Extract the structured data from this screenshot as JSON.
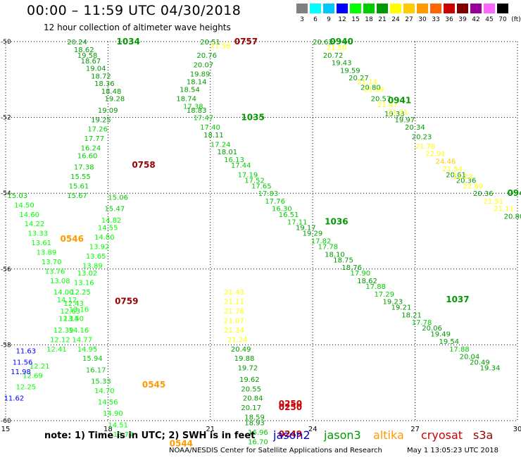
{
  "title": "00:00 – 11:59 UTC 04/30/2018",
  "subtitle": "12 hour collection of altimeter wave heights",
  "note": "note: 1) Time is in UTC; 2) SWH is in feet",
  "footer": "NOAA/NESDIS Center for Satellite Applications and Research",
  "timestamp": "May  1 13:05:23 UTC 2018",
  "missions": [
    {
      "name": "jason2",
      "color": "#0000cc"
    },
    {
      "name": "jason3",
      "color": "#009900"
    },
    {
      "name": "altika",
      "color": "#ff9900"
    },
    {
      "name": "cryosat",
      "color": "#cc0000"
    },
    {
      "name": "s3a",
      "color": "#990000"
    }
  ],
  "color_scale": {
    "unit": "(ft)",
    "thresholds": [
      "3",
      "6",
      "9",
      "12",
      "15",
      "18",
      "21",
      "24",
      "27",
      "30",
      "33",
      "36",
      "39",
      "42",
      "45",
      "70"
    ],
    "colors": [
      "#808080",
      "#00ffff",
      "#00c8ff",
      "#0000ff",
      "#00ff00",
      "#00cc00",
      "#009900",
      "#ffff00",
      "#ffcc00",
      "#ff9900",
      "#ff6600",
      "#cc0000",
      "#800000",
      "#990099",
      "#ff66ff",
      "#000000"
    ]
  },
  "chart_data": {
    "type": "scatter",
    "title": "12 hour collection of altimeter wave heights",
    "xlabel": "",
    "ylabel": "",
    "xlim": [
      15,
      30
    ],
    "ylim": [
      -60,
      -50
    ],
    "x_ticks": [
      "15",
      "18",
      "21",
      "24",
      "27",
      "30"
    ],
    "y_ticks": [
      "-50",
      "-52",
      "-54",
      "-56",
      "-58",
      "-60"
    ],
    "grid": true,
    "tracks": [
      {
        "satellite": "jason3",
        "points": [
          [
            16.8,
            -50.0,
            "20.24"
          ],
          [
            17.0,
            -50.2,
            "18.62"
          ],
          [
            17.1,
            -50.35,
            "19.58"
          ],
          [
            17.2,
            -50.5,
            "18.67"
          ],
          [
            17.35,
            -50.7,
            "19.04"
          ],
          [
            17.5,
            -50.9,
            "18.72"
          ],
          [
            17.6,
            -51.1,
            "18.36"
          ],
          [
            17.8,
            -51.3,
            "18.48"
          ],
          [
            17.9,
            -51.5,
            "19.28"
          ],
          [
            17.7,
            -51.8,
            "19.09"
          ],
          [
            17.5,
            -52.05,
            "19.25"
          ],
          [
            17.4,
            -52.3,
            "17.26"
          ],
          [
            17.3,
            -52.55,
            "17.77"
          ],
          [
            17.2,
            -52.8,
            "16.24"
          ],
          [
            17.1,
            -53.0,
            "16.60"
          ],
          [
            17.0,
            -53.3,
            "17.38"
          ],
          [
            16.9,
            -53.55,
            "15.55"
          ],
          [
            16.85,
            -53.8,
            "15.61"
          ],
          [
            16.8,
            -54.05,
            "15.67"
          ]
        ]
      },
      {
        "satellite": "jason3",
        "points": [
          [
            20.7,
            -50.0,
            "20.51"
          ],
          [
            20.6,
            -50.35,
            "20.76"
          ],
          [
            20.5,
            -50.6,
            "20.07"
          ],
          [
            20.4,
            -50.85,
            "19.89"
          ],
          [
            20.3,
            -51.05,
            "18.14"
          ],
          [
            20.1,
            -51.25,
            "18.54"
          ],
          [
            20.0,
            -51.5,
            "18.74"
          ],
          [
            20.2,
            -51.7,
            "17.38"
          ],
          [
            20.3,
            -51.8,
            "18.83"
          ],
          [
            20.5,
            -52.0,
            "17.47"
          ],
          [
            20.7,
            -52.25,
            "17.40"
          ],
          [
            20.8,
            -52.45,
            "18.11"
          ],
          [
            21.0,
            -52.7,
            "17.24"
          ],
          [
            21.2,
            -52.9,
            "18.01"
          ],
          [
            21.4,
            -53.1,
            "16.13"
          ],
          [
            21.6,
            -53.25,
            "17.44"
          ],
          [
            21.8,
            -53.5,
            "17.19"
          ],
          [
            22.0,
            -53.65,
            "17.52"
          ],
          [
            22.2,
            -53.8,
            "17.65"
          ],
          [
            22.4,
            -54.0,
            "17.83"
          ],
          [
            22.6,
            -54.2,
            "17.76"
          ],
          [
            22.8,
            -54.4,
            "16.30"
          ],
          [
            23.0,
            -54.55,
            "16.51"
          ],
          [
            23.25,
            -54.75,
            "17.11"
          ],
          [
            23.5,
            -54.9,
            "19.17"
          ],
          [
            23.7,
            -55.05,
            "19.29"
          ],
          [
            23.95,
            -55.25,
            "17.82"
          ],
          [
            24.15,
            -55.4,
            "17.78"
          ],
          [
            24.35,
            -55.6,
            "18.10"
          ],
          [
            24.6,
            -55.75,
            "18.75"
          ],
          [
            24.85,
            -55.95,
            "18.76"
          ],
          [
            25.1,
            -56.1,
            "17.90"
          ],
          [
            25.3,
            -56.3,
            "18.62"
          ],
          [
            25.55,
            -56.45,
            "17.88"
          ],
          [
            25.8,
            -56.65,
            "17.29"
          ],
          [
            26.05,
            -56.85,
            "19.23"
          ],
          [
            26.3,
            -57.0,
            "19.21"
          ],
          [
            26.6,
            -57.2,
            "18.21"
          ],
          [
            26.9,
            -57.4,
            "17.78"
          ],
          [
            27.2,
            -57.55,
            "20.06"
          ],
          [
            27.45,
            -57.7,
            "19.49"
          ],
          [
            27.7,
            -57.9,
            "19.54"
          ],
          [
            28.0,
            -58.1,
            "17.88"
          ],
          [
            28.3,
            -58.3,
            "20.04"
          ],
          [
            28.6,
            -58.45,
            "20.49"
          ],
          [
            28.9,
            -58.6,
            "19.34"
          ]
        ]
      },
      {
        "satellite": "jason3",
        "points": [
          [
            24.0,
            -50.0,
            "20.62"
          ],
          [
            24.3,
            -50.35,
            "20.72"
          ],
          [
            24.55,
            -50.55,
            "19.43"
          ],
          [
            24.8,
            -50.75,
            "19.59"
          ],
          [
            25.05,
            -50.95,
            "20.27"
          ],
          [
            25.4,
            -51.2,
            "20.80"
          ],
          [
            25.7,
            -51.5,
            "20.57"
          ],
          [
            26.1,
            -51.9,
            "19.33"
          ],
          [
            26.4,
            -52.05,
            "19.97"
          ],
          [
            26.7,
            -52.25,
            "20.34"
          ],
          [
            26.9,
            -52.5,
            "20.23"
          ],
          [
            27.9,
            -53.5,
            "20.61"
          ],
          [
            28.2,
            -53.65,
            "20.36"
          ]
        ]
      },
      {
        "satellite": "altika",
        "points": [
          [
            15.05,
            -54.05,
            "15.03"
          ],
          [
            15.25,
            -54.3,
            "14.50"
          ],
          [
            15.4,
            -54.55,
            "14.60"
          ],
          [
            15.55,
            -54.8,
            "14.22"
          ],
          [
            15.65,
            -55.05,
            "13.33"
          ],
          [
            15.75,
            -55.3,
            "13.61"
          ],
          [
            15.9,
            -55.55,
            "13.89"
          ],
          [
            16.05,
            -55.8,
            "13.70"
          ],
          [
            16.15,
            -56.05,
            "13.76"
          ],
          [
            16.3,
            -56.3,
            "13.08"
          ],
          [
            16.4,
            -56.6,
            "14.00"
          ],
          [
            16.5,
            -56.8,
            "14.12"
          ],
          [
            16.6,
            -57.1,
            "12.63"
          ],
          [
            16.55,
            -57.3,
            "12.14"
          ],
          [
            16.4,
            -57.6,
            "12.39"
          ],
          [
            16.3,
            -57.85,
            "12.12"
          ],
          [
            16.2,
            -58.1,
            "12.41"
          ],
          [
            15.7,
            -58.55,
            "12.21"
          ],
          [
            15.5,
            -58.8,
            "12.69"
          ],
          [
            15.3,
            -59.1,
            "12.25"
          ]
        ]
      },
      {
        "satellite": "altika",
        "points": [
          [
            18.0,
            -54.1,
            "15.06"
          ],
          [
            17.9,
            -54.4,
            "15.47"
          ],
          [
            17.8,
            -54.7,
            "14.82"
          ],
          [
            17.7,
            -54.9,
            "14.55"
          ],
          [
            17.6,
            -55.15,
            "14.80"
          ],
          [
            17.45,
            -55.4,
            "13.92"
          ],
          [
            17.35,
            -55.65,
            "13.65"
          ],
          [
            17.25,
            -55.9,
            "13.89"
          ],
          [
            17.1,
            -56.1,
            "13.02"
          ],
          [
            17.0,
            -56.35,
            "13.16"
          ],
          [
            16.9,
            -56.6,
            "12.25"
          ],
          [
            16.7,
            -56.9,
            "12.43"
          ],
          [
            16.85,
            -57.05,
            "13.16"
          ],
          [
            16.7,
            -57.3,
            "13.50"
          ],
          [
            16.85,
            -57.6,
            "14.16"
          ],
          [
            16.95,
            -57.85,
            "14.77"
          ],
          [
            17.1,
            -58.1,
            "14.95"
          ],
          [
            17.25,
            -58.35,
            "15.94"
          ],
          [
            17.35,
            -58.65,
            "16.17"
          ],
          [
            17.5,
            -58.95,
            "15.33"
          ],
          [
            17.6,
            -59.2,
            "14.70"
          ],
          [
            17.7,
            -59.5,
            "14.56"
          ],
          [
            17.85,
            -59.8,
            "14.90"
          ],
          [
            18.0,
            -60.1,
            "14.51"
          ],
          [
            18.15,
            -60.35,
            "13.74"
          ]
        ]
      },
      {
        "satellite": "altika",
        "points": [
          [
            21.4,
            -56.6,
            "21.43"
          ],
          [
            21.4,
            -56.85,
            "21.11"
          ],
          [
            21.4,
            -57.1,
            "21.76"
          ],
          [
            21.4,
            -57.35,
            "21.07"
          ],
          [
            21.4,
            -57.6,
            "21.34"
          ],
          [
            21.5,
            -57.85,
            "21.24"
          ],
          [
            21.6,
            -58.1,
            "20.49"
          ],
          [
            21.7,
            -58.35,
            "19.88"
          ],
          [
            21.8,
            -58.6,
            "19.72"
          ],
          [
            21.85,
            -58.9,
            "19.62"
          ],
          [
            21.9,
            -59.15,
            "20.55"
          ],
          [
            21.95,
            -59.4,
            "20.84"
          ],
          [
            21.9,
            -59.65,
            "20.17"
          ],
          [
            22.0,
            -59.9,
            "18.59"
          ],
          [
            22.0,
            -60.05,
            "18.93"
          ],
          [
            22.1,
            -60.3,
            "16.96"
          ],
          [
            22.1,
            -60.55,
            "16.70"
          ]
        ]
      },
      {
        "satellite": "altika",
        "points": [
          [
            21.0,
            -50.1,
            "21.58"
          ],
          [
            24.4,
            -50.15,
            "21.50"
          ],
          [
            25.3,
            -51.05,
            "21.14"
          ],
          [
            25.5,
            -51.25,
            "21.09"
          ],
          [
            25.9,
            -51.65,
            "21.47"
          ],
          [
            26.2,
            -51.85,
            "21.31"
          ],
          [
            27.0,
            -52.75,
            "21.78"
          ],
          [
            27.3,
            -52.95,
            "22.91"
          ],
          [
            27.6,
            -53.15,
            "24.46"
          ],
          [
            27.8,
            -53.35,
            "21.54"
          ],
          [
            28.1,
            -53.55,
            "21.53"
          ],
          [
            28.4,
            -53.8,
            "22.89"
          ],
          [
            28.7,
            -54.0,
            "20.36"
          ],
          [
            29.0,
            -54.2,
            "21.51"
          ],
          [
            29.3,
            -54.4,
            "21.11"
          ],
          [
            29.6,
            -54.6,
            "20.80"
          ]
        ]
      },
      {
        "satellite": "jason2",
        "points": [
          [
            15.3,
            -58.15,
            "11.63"
          ],
          [
            15.2,
            -58.45,
            "11.56"
          ],
          [
            15.15,
            -58.7,
            "11.98"
          ],
          [
            14.95,
            -59.4,
            "11.62"
          ]
        ]
      }
    ],
    "annotations": [
      {
        "x": 18.25,
        "y": -50.0,
        "text": "1034",
        "satellite": "jason3"
      },
      {
        "x": 21.7,
        "y": -50.0,
        "text": "0757",
        "satellite": "s3a"
      },
      {
        "x": 24.5,
        "y": -50.0,
        "text": "0940",
        "satellite": "jason3"
      },
      {
        "x": 26.2,
        "y": -51.55,
        "text": "0941",
        "satellite": "jason3"
      },
      {
        "x": 21.9,
        "y": -52.0,
        "text": "1035",
        "satellite": "jason3"
      },
      {
        "x": 18.7,
        "y": -53.25,
        "text": "0758",
        "satellite": "s3a"
      },
      {
        "x": 29.7,
        "y": -54.0,
        "text": "094",
        "satellite": "jason3"
      },
      {
        "x": 24.35,
        "y": -54.75,
        "text": "1036",
        "satellite": "jason3"
      },
      {
        "x": 16.6,
        "y": -55.2,
        "text": "0546",
        "satellite": "altika"
      },
      {
        "x": 18.2,
        "y": -56.85,
        "text": "0759",
        "satellite": "s3a"
      },
      {
        "x": 27.9,
        "y": -56.8,
        "text": "1037",
        "satellite": "jason3"
      },
      {
        "x": 19.0,
        "y": -59.05,
        "text": "0545",
        "satellite": "altika"
      },
      {
        "x": 23.0,
        "y": -59.55,
        "text": "0250",
        "satellite": "cryosat"
      },
      {
        "x": 23.0,
        "y": -59.65,
        "text": "0250",
        "satellite": "cryosat"
      },
      {
        "x": 23.0,
        "y": -60.35,
        "text": "0249",
        "satellite": "cryosat"
      },
      {
        "x": 19.8,
        "y": -60.6,
        "text": "0544",
        "satellite": "altika"
      }
    ]
  }
}
